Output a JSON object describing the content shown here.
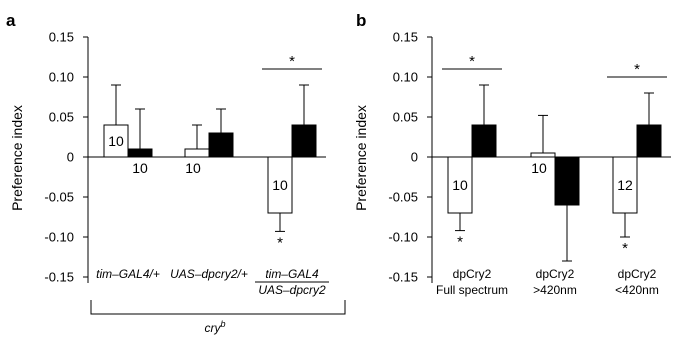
{
  "figure": {
    "cry_label": "cry",
    "cry_sup": "b"
  },
  "chart_data": [
    {
      "type": "bar",
      "panel": "a",
      "ylabel": "Preference index",
      "ylim": [
        -0.15,
        0.15
      ],
      "yticks": [
        "0.15",
        "0.10",
        "0.05",
        "0",
        "-0.05",
        "-0.10",
        "-0.15"
      ],
      "ytick_values": [
        0.15,
        0.1,
        0.05,
        0,
        -0.05,
        -0.1,
        -0.15
      ],
      "grid": false,
      "categories": [
        {
          "line1": "tim–GAL4/+",
          "line2": "",
          "italic": true
        },
        {
          "line1": "UAS–dpcry2/+",
          "line2": "",
          "italic": true
        },
        {
          "line1": "tim–GAL4",
          "line2": "UAS–dpcry2",
          "italic": true
        }
      ],
      "series": [
        {
          "fill": "white",
          "values": [
            0.04,
            0.01,
            -0.07
          ],
          "errors": [
            0.05,
            0.03,
            0.023
          ],
          "n": [
            "10",
            "10",
            "10"
          ]
        },
        {
          "fill": "black",
          "values": [
            0.01,
            0.03,
            0.04
          ],
          "errors": [
            0.05,
            0.03,
            0.05
          ],
          "n": [
            "10",
            "10",
            "10"
          ]
        }
      ],
      "significance": [
        {
          "category": 2,
          "bracket": true,
          "label": "*"
        },
        {
          "category": 2,
          "series": 0,
          "label": "*"
        }
      ]
    },
    {
      "type": "bar",
      "panel": "b",
      "ylabel": "Preference index",
      "ylim": [
        -0.15,
        0.15
      ],
      "yticks": [
        "0.15",
        "0.10",
        "0.05",
        "0",
        "-0.05",
        "-0.10",
        "-0.15"
      ],
      "ytick_values": [
        0.15,
        0.1,
        0.05,
        0,
        -0.05,
        -0.1,
        -0.15
      ],
      "grid": false,
      "categories": [
        {
          "line1": "dpCry2",
          "line2": "Full spectrum",
          "italic": false
        },
        {
          "line1": "dpCry2",
          "line2": ">420nm",
          "italic": false
        },
        {
          "line1": "dpCry2",
          "line2": "<420nm",
          "italic": false
        }
      ],
      "series": [
        {
          "fill": "white",
          "values": [
            -0.07,
            0.005,
            -0.07
          ],
          "errors": [
            0.022,
            0.047,
            0.03
          ],
          "n": [
            "10",
            "10",
            "12"
          ]
        },
        {
          "fill": "black",
          "values": [
            0.04,
            -0.06,
            0.04
          ],
          "errors": [
            0.05,
            0.07,
            0.04
          ],
          "n": [
            "10",
            "10",
            "12"
          ]
        }
      ],
      "significance": [
        {
          "category": 0,
          "bracket": true,
          "label": "*"
        },
        {
          "category": 0,
          "series": 0,
          "label": "*"
        },
        {
          "category": 2,
          "bracket": true,
          "label": "*"
        },
        {
          "category": 2,
          "series": 0,
          "label": "*"
        }
      ]
    }
  ]
}
